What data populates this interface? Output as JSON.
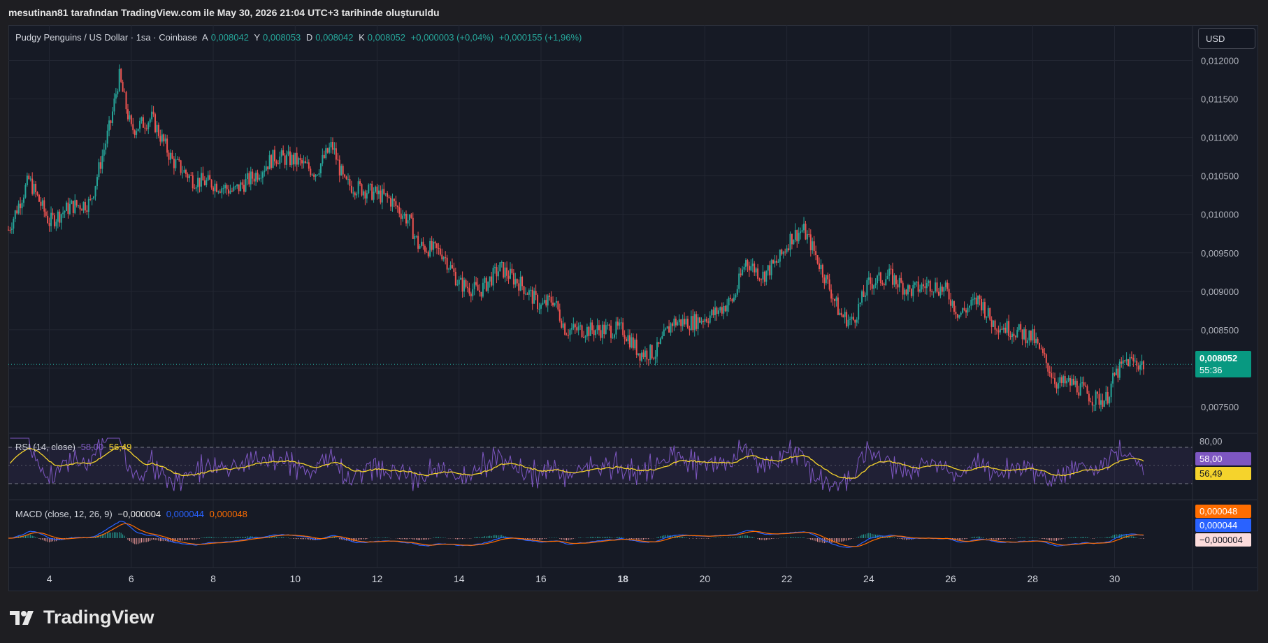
{
  "caption": "mesutinan81 tarafından TradingView.com ile May 30, 2026 21:04 UTC+3 tarihinde oluşturuldu",
  "currency_button": "USD",
  "legend": {
    "symbol": "Pudgy Penguins / US Dollar · 1sa · Coinbase",
    "open_label": "A",
    "open": "0,008042",
    "high_label": "Y",
    "high": "0,008053",
    "low_label": "D",
    "low": "0,008042",
    "close_label": "K",
    "close": "0,008052",
    "change": "+0,000003 (+0,04%)",
    "change2": "+0,000155 (+1,96%)"
  },
  "rsi_legend": {
    "name": "RSI (14, close)",
    "value": "58,00",
    "ma": "56,49"
  },
  "macd_legend": {
    "name": "MACD (close, 12, 26, 9)",
    "hist": "−0,000004",
    "macd": "0,000044",
    "signal": "0,000048"
  },
  "price_tag": {
    "price": "0,008052",
    "countdown": "55:36"
  },
  "rsi_tags": {
    "rsi": "58,00",
    "ma": "56,49",
    "level": "80,00"
  },
  "macd_tags": {
    "signal": "0,000048",
    "macd": "0,000044",
    "hist": "−0,000004"
  },
  "footer": {
    "brand": "TradingView"
  },
  "colors": {
    "up": "#26a69a",
    "down": "#ef5350",
    "rsi": "#7e57c2",
    "rsi_ma": "#f5d32c",
    "macd": "#2962ff",
    "signal": "#ff6d00",
    "background": "#161a25"
  },
  "chart_data": {
    "type": "candlestick",
    "x_ticks": [
      "4",
      "6",
      "8",
      "10",
      "12",
      "14",
      "16",
      "18",
      "20",
      "22",
      "24",
      "26",
      "28",
      "30"
    ],
    "y_ticks": [
      "0,012000",
      "0,011500",
      "0,011000",
      "0,010500",
      "0,010000",
      "0,009500",
      "0,009000",
      "0,008500",
      "0,008000",
      "0,007500"
    ],
    "ylim": [
      0.0072,
      0.01215
    ],
    "last_price": 0.008052,
    "close_path": [
      [
        3.0,
        0.0098
      ],
      [
        3.5,
        0.01045
      ],
      [
        4.0,
        0.0099
      ],
      [
        4.5,
        0.0101
      ],
      [
        5.0,
        0.01015
      ],
      [
        5.5,
        0.0112
      ],
      [
        5.7,
        0.0118
      ],
      [
        6.0,
        0.0111
      ],
      [
        6.5,
        0.01125
      ],
      [
        7.0,
        0.0107
      ],
      [
        7.5,
        0.01045
      ],
      [
        8.0,
        0.0104
      ],
      [
        8.5,
        0.0103
      ],
      [
        9.0,
        0.0105
      ],
      [
        9.5,
        0.01075
      ],
      [
        10.0,
        0.0107
      ],
      [
        10.5,
        0.01055
      ],
      [
        10.9,
        0.0109
      ],
      [
        11.2,
        0.0104
      ],
      [
        11.8,
        0.0103
      ],
      [
        12.3,
        0.0102
      ],
      [
        12.8,
        0.0099
      ],
      [
        13.0,
        0.0096
      ],
      [
        13.6,
        0.0095
      ],
      [
        14.0,
        0.0091
      ],
      [
        14.5,
        0.009
      ],
      [
        15.0,
        0.0093
      ],
      [
        15.5,
        0.0091
      ],
      [
        16.0,
        0.0088
      ],
      [
        16.3,
        0.0089
      ],
      [
        16.6,
        0.0085
      ],
      [
        17.0,
        0.0085
      ],
      [
        17.5,
        0.0085
      ],
      [
        18.0,
        0.0085
      ],
      [
        18.4,
        0.0082
      ],
      [
        18.8,
        0.0082
      ],
      [
        19.2,
        0.0086
      ],
      [
        19.7,
        0.0086
      ],
      [
        20.2,
        0.0087
      ],
      [
        20.7,
        0.0089
      ],
      [
        21.0,
        0.0094
      ],
      [
        21.4,
        0.0092
      ],
      [
        21.8,
        0.0094
      ],
      [
        22.1,
        0.0097
      ],
      [
        22.4,
        0.0098
      ],
      [
        22.6,
        0.0096
      ],
      [
        23.0,
        0.0091
      ],
      [
        23.3,
        0.0087
      ],
      [
        23.6,
        0.0086
      ],
      [
        24.0,
        0.0091
      ],
      [
        24.5,
        0.0092
      ],
      [
        25.0,
        0.009
      ],
      [
        25.5,
        0.0091
      ],
      [
        25.9,
        0.009
      ],
      [
        26.2,
        0.0087
      ],
      [
        26.7,
        0.0089
      ],
      [
        27.0,
        0.0086
      ],
      [
        27.5,
        0.0085
      ],
      [
        28.0,
        0.0084
      ],
      [
        28.3,
        0.0081
      ],
      [
        28.6,
        0.0078
      ],
      [
        29.0,
        0.0078
      ],
      [
        29.5,
        0.0076
      ],
      [
        29.8,
        0.0076
      ],
      [
        30.0,
        0.0079
      ],
      [
        30.3,
        0.0081
      ],
      [
        30.7,
        0.00805
      ]
    ],
    "rsi_levels": [
      70,
      30
    ],
    "macd_zero": 0
  }
}
